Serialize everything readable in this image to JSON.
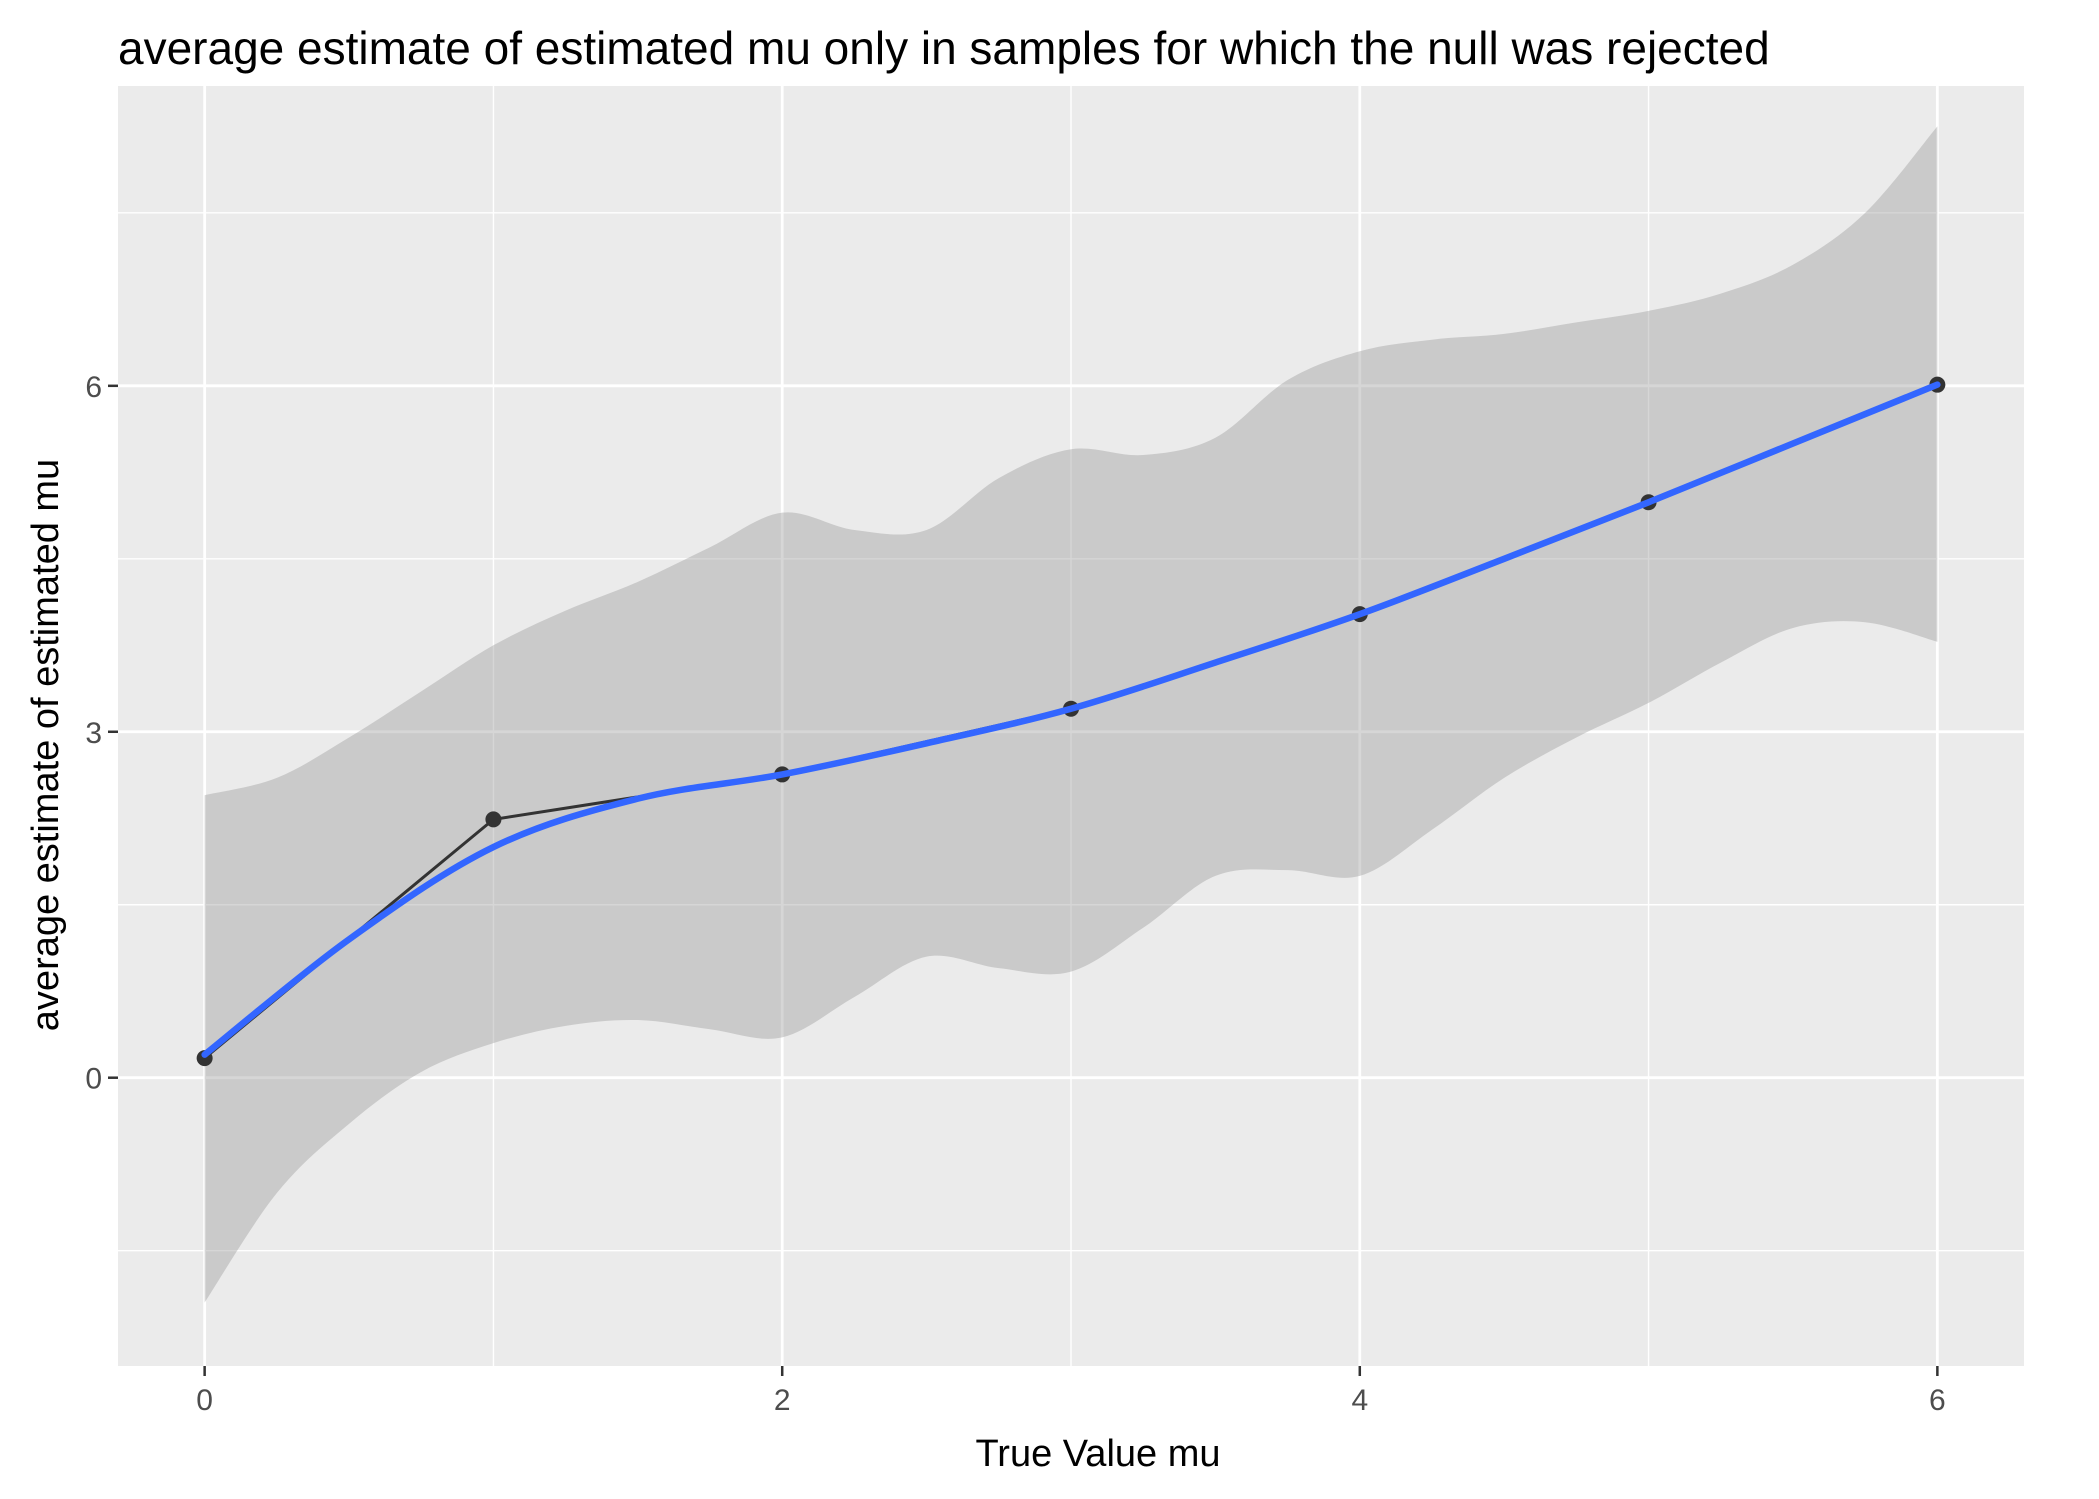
{
  "chart_data": {
    "type": "line",
    "title": "average estimate of estimated mu only in samples for which the null was rejected",
    "xlabel": "True Value mu",
    "ylabel": "average estimate of estimated mu",
    "xlim": [
      -0.3,
      6.3
    ],
    "ylim": [
      -2.5,
      8.6
    ],
    "x_ticks": [
      0,
      2,
      4,
      6
    ],
    "y_ticks": [
      0,
      3,
      6
    ],
    "x_tick_labels": [
      "0",
      "2",
      "4",
      "6"
    ],
    "y_tick_labels": [
      "0",
      "3",
      "6"
    ],
    "grid": true,
    "panel_background": "#ebebeb",
    "series": [
      {
        "kind": "line+points",
        "color": "#333333",
        "x": [
          0,
          1,
          2,
          3,
          4,
          5,
          6
        ],
        "y": [
          0.17,
          2.24,
          2.63,
          3.2,
          4.02,
          4.99,
          6.01
        ]
      },
      {
        "kind": "smooth",
        "color": "#3366ff",
        "x": [
          0,
          0.5,
          1,
          1.5,
          2,
          2.5,
          3,
          3.5,
          4,
          4.5,
          5,
          5.5,
          6
        ],
        "y": [
          0.2,
          1.2,
          2.0,
          2.42,
          2.63,
          2.9,
          3.2,
          3.6,
          4.02,
          4.5,
          4.99,
          5.5,
          6.01
        ]
      }
    ],
    "ribbon": {
      "fill": "#999999",
      "opacity": 0.4,
      "x": [
        0,
        0.25,
        0.5,
        0.75,
        1,
        1.25,
        1.5,
        1.75,
        2,
        2.25,
        2.5,
        2.75,
        3,
        3.25,
        3.5,
        3.75,
        4,
        4.25,
        4.5,
        4.75,
        5,
        5.25,
        5.5,
        5.75,
        6
      ],
      "lower": [
        -1.95,
        -1.0,
        -0.4,
        0.05,
        0.3,
        0.45,
        0.5,
        0.42,
        0.35,
        0.7,
        1.05,
        0.95,
        0.92,
        1.3,
        1.75,
        1.8,
        1.75,
        2.15,
        2.6,
        2.95,
        3.25,
        3.6,
        3.9,
        3.95,
        3.78
      ],
      "upper": [
        2.45,
        2.6,
        2.95,
        3.35,
        3.75,
        4.05,
        4.3,
        4.6,
        4.9,
        4.75,
        4.75,
        5.2,
        5.45,
        5.4,
        5.55,
        6.05,
        6.3,
        6.4,
        6.45,
        6.55,
        6.65,
        6.8,
        7.05,
        7.5,
        8.25
      ]
    }
  }
}
